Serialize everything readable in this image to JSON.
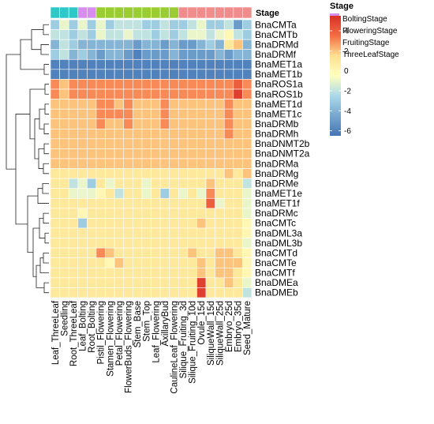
{
  "chart_data": {
    "type": "heatmap",
    "rows": [
      "BnaCMTa",
      "BnaCMTb",
      "BnaDRMd",
      "BnaDRMf",
      "BnaMET1a",
      "BnaMET1b",
      "BnaROS1a",
      "BnaROS1b",
      "BnaMET1d",
      "BnaMET1c",
      "BnaDRMb",
      "BnaDRMh",
      "BnaDNMT2b",
      "BnaDNMT2a",
      "BnaDRMa",
      "BnaDRMg",
      "BnaDRMe",
      "BnaMET1e",
      "BnaMET1f",
      "BnaDRMc",
      "BnaCMTc",
      "BnaDML3a",
      "BnaDML3b",
      "BnaCMTd",
      "BnaCMTe",
      "BnaCMTf",
      "BnaDMEa",
      "BnaDMEb"
    ],
    "columns": [
      "Leaf_ThreeLeaf",
      "Seedling",
      "Root_ThreeLeaf",
      "Leaf_Bolting",
      "Root_Bolting",
      "Pistil_Flowering",
      "Stamen_Flowering",
      "Petal_Flowering",
      "FlowerBuds_Flowering",
      "Stem_Base",
      "Stem_Top",
      "Leaf_Flowering",
      "AxillaryBud",
      "CaulineLeaf_Flowering",
      "Silique_Fruiting_3d",
      "Silique_Fruiting_10d",
      "Ovule_15d",
      "SiliqueWall_15d",
      "SiliqueWall_25d",
      "Embryo_25d",
      "Embryo_35d",
      "Seed_Mature"
    ],
    "values": [
      [
        -3,
        -1,
        -3,
        -1,
        -3,
        -1,
        -3,
        -2,
        -2,
        -2,
        -3,
        -3,
        -2,
        -3,
        -3,
        -2,
        -1,
        -3,
        -3,
        -2,
        -5,
        -3
      ],
      [
        -2,
        -2,
        -3,
        -2,
        -3,
        -1,
        -2,
        -2,
        -1,
        -2,
        -2,
        -3,
        -2,
        -3,
        -2,
        -1,
        -1,
        -2,
        -1,
        0,
        -2,
        -3
      ],
      [
        -4,
        -2,
        -3,
        -4,
        -4,
        -4,
        -4,
        -4,
        -4,
        -5,
        -4,
        -4,
        -5,
        -4,
        -5,
        -5,
        -4,
        -3,
        -4,
        1,
        2,
        -4
      ],
      [
        -3,
        -2,
        -4,
        -3,
        -4,
        -5,
        -4,
        -4,
        -5,
        -6,
        -5,
        -5,
        -5,
        -4,
        -5,
        -5,
        -5,
        -5,
        -4,
        -5,
        -4,
        -4
      ],
      [
        -6,
        -6,
        -6,
        -6,
        -6,
        -6,
        -6,
        -6,
        -6,
        -6,
        -6,
        -6,
        -6,
        -6,
        -6,
        -6,
        -6,
        -6,
        -6,
        -6,
        -6,
        -6
      ],
      [
        -6,
        -6,
        -6,
        -6,
        -6,
        -6,
        -6,
        -6,
        -6,
        -6,
        -6,
        -6,
        -6,
        -6,
        -6,
        -6,
        -6,
        -6,
        -6,
        -6,
        -6,
        -6
      ],
      [
        3,
        2,
        3,
        3,
        3,
        3,
        3,
        3,
        3,
        3,
        3,
        3,
        3,
        3,
        3,
        3,
        3,
        3,
        3,
        3,
        4,
        3
      ],
      [
        3,
        2,
        3,
        3,
        3,
        3,
        3,
        3,
        3,
        3,
        3,
        3,
        3,
        3,
        3,
        3,
        3,
        3,
        3,
        3,
        5,
        3
      ],
      [
        2,
        2,
        2,
        2,
        2,
        3,
        3,
        2,
        3,
        2,
        2,
        2,
        3,
        2,
        2,
        2,
        2,
        2,
        2,
        3,
        2,
        2
      ],
      [
        2,
        2,
        2,
        2,
        2,
        3,
        3,
        3,
        3,
        2,
        2,
        2,
        3,
        2,
        2,
        2,
        2,
        2,
        2,
        3,
        2,
        2
      ],
      [
        2,
        2,
        2,
        2,
        2,
        3,
        2,
        2,
        3,
        2,
        2,
        2,
        3,
        2,
        2,
        2,
        2,
        2,
        2,
        3,
        2,
        2
      ],
      [
        2,
        2,
        2,
        2,
        2,
        2,
        2,
        2,
        2,
        2,
        2,
        2,
        2,
        2,
        2,
        2,
        2,
        2,
        2,
        3,
        2,
        2
      ],
      [
        2,
        2,
        2,
        2,
        2,
        2,
        2,
        2,
        2,
        2,
        2,
        2,
        2,
        2,
        2,
        2,
        2,
        2,
        2,
        2,
        2,
        2
      ],
      [
        2,
        2,
        2,
        2,
        2,
        2,
        2,
        2,
        2,
        2,
        2,
        2,
        2,
        2,
        2,
        2,
        2,
        2,
        2,
        2,
        2,
        2
      ],
      [
        2,
        2,
        2,
        2,
        2,
        2,
        2,
        2,
        2,
        2,
        2,
        2,
        2,
        2,
        2,
        2,
        2,
        2,
        2,
        2,
        2,
        2
      ],
      [
        1,
        1,
        1,
        1,
        1,
        1,
        1,
        1,
        1,
        1,
        1,
        1,
        1,
        1,
        1,
        1,
        1,
        1,
        1,
        2,
        1,
        2
      ],
      [
        1,
        1,
        -2,
        -1,
        -3,
        1,
        -1,
        1,
        1,
        1,
        -1,
        1,
        1,
        1,
        1,
        1,
        1,
        2,
        1,
        1,
        1,
        -2
      ],
      [
        1,
        1,
        -1,
        -1,
        -1,
        0,
        1,
        -2,
        1,
        1,
        -1,
        1,
        -3,
        1,
        -1,
        1,
        -1,
        3,
        1,
        1,
        1,
        -1
      ],
      [
        1,
        1,
        1,
        1,
        1,
        1,
        1,
        1,
        1,
        1,
        1,
        1,
        1,
        1,
        1,
        1,
        1,
        4,
        -1,
        1,
        1,
        -1
      ],
      [
        1,
        1,
        1,
        0,
        1,
        1,
        1,
        1,
        1,
        1,
        1,
        1,
        1,
        1,
        1,
        1,
        1,
        1,
        1,
        1,
        1,
        -1
      ],
      [
        1,
        1,
        1,
        -3,
        1,
        1,
        1,
        1,
        1,
        1,
        1,
        1,
        1,
        1,
        1,
        1,
        2,
        1,
        1,
        1,
        1,
        0
      ],
      [
        1,
        1,
        1,
        1,
        1,
        1,
        1,
        1,
        1,
        1,
        1,
        1,
        1,
        1,
        1,
        1,
        1,
        1,
        1,
        1,
        1,
        0
      ],
      [
        1,
        1,
        1,
        1,
        1,
        1,
        1,
        1,
        1,
        1,
        1,
        1,
        1,
        1,
        1,
        1,
        1,
        1,
        1,
        1,
        1,
        -1
      ],
      [
        1,
        1,
        1,
        1,
        1,
        3,
        2,
        1,
        1,
        1,
        1,
        1,
        1,
        1,
        1,
        2,
        1,
        1,
        2,
        2,
        1,
        0
      ],
      [
        1,
        1,
        1,
        1,
        1,
        1,
        0,
        2,
        1,
        1,
        1,
        1,
        1,
        1,
        1,
        1,
        2,
        1,
        2,
        2,
        2,
        0
      ],
      [
        1,
        1,
        1,
        1,
        1,
        1,
        1,
        1,
        1,
        1,
        1,
        1,
        1,
        1,
        1,
        1,
        2,
        1,
        2,
        2,
        1,
        0
      ],
      [
        1,
        1,
        1,
        1,
        1,
        1,
        1,
        1,
        1,
        1,
        1,
        1,
        1,
        1,
        1,
        1,
        5,
        1,
        1,
        2,
        1,
        -1
      ],
      [
        1,
        1,
        1,
        1,
        1,
        1,
        1,
        1,
        1,
        1,
        1,
        1,
        1,
        1,
        1,
        1,
        5,
        1,
        1,
        1,
        1,
        -2
      ]
    ],
    "column_stage": [
      "ThreeLeafStage",
      "ThreeLeafStage",
      "ThreeLeafStage",
      "BoltingStage",
      "BoltingStage",
      "FloweringStage",
      "FloweringStage",
      "FloweringStage",
      "FloweringStage",
      "FloweringStage",
      "FloweringStage",
      "FloweringStage",
      "FloweringStage",
      "FloweringStage",
      "FruitingStage",
      "FruitingStage",
      "FruitingStage",
      "FruitingStage",
      "FruitingStage",
      "FruitingStage",
      "FruitingStage",
      "FruitingStage"
    ],
    "annotation_title": "Stage",
    "legend": {
      "title": "Stage",
      "entries": [
        {
          "label": "BoltingStage",
          "color": "#d98cf0"
        },
        {
          "label": "FloweringStage",
          "color": "#9acd32"
        },
        {
          "label": "FruitingStage",
          "color": "#f08c8c"
        },
        {
          "label": "ThreeLeafStage",
          "color": "#2ec8c8"
        }
      ],
      "placement": "top-right"
    },
    "color_scale": {
      "range": [
        -6.5,
        5.5
      ],
      "ticks": [
        "4",
        "2",
        "0",
        "-2",
        "-4",
        "-6"
      ],
      "tick_values": [
        4,
        2,
        0,
        -2,
        -4,
        -6
      ],
      "stops": [
        {
          "v": -6.5,
          "c": "#4575b4"
        },
        {
          "v": -2.5,
          "c": "#abd9e9"
        },
        {
          "v": -0.5,
          "c": "#ffffbf"
        },
        {
          "v": 1.5,
          "c": "#fee090"
        },
        {
          "v": 3.5,
          "c": "#f46d43"
        },
        {
          "v": 5.5,
          "c": "#d73027"
        }
      ]
    },
    "row_dendrogram": true,
    "grid": true
  }
}
